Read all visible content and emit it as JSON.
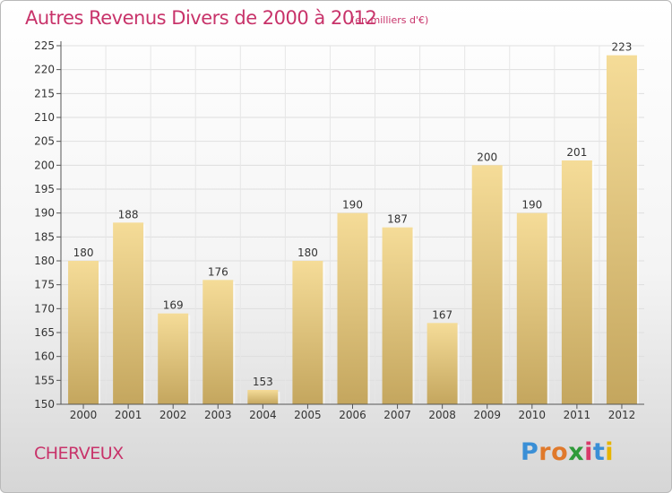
{
  "chart_data": {
    "type": "bar",
    "title": "Autres Revenus Divers de 2000 à 2012",
    "subtitle": "(en milliers d'€)",
    "categories": [
      "2000",
      "2001",
      "2002",
      "2003",
      "2004",
      "2005",
      "2006",
      "2007",
      "2008",
      "2009",
      "2010",
      "2011",
      "2012"
    ],
    "values": [
      180,
      188,
      169,
      176,
      153,
      180,
      190,
      187,
      167,
      200,
      190,
      201,
      223
    ],
    "ylim": [
      150,
      225
    ],
    "yticks": [
      150,
      155,
      160,
      165,
      170,
      175,
      180,
      185,
      190,
      195,
      200,
      205,
      210,
      215,
      220,
      225
    ],
    "grid": true,
    "bar_color_top": "#f5dc98",
    "bar_color_bottom": "#c4a65e"
  },
  "commune": "CHERVEUX",
  "logo": {
    "letters": [
      "P",
      "r",
      "o",
      "x",
      "i",
      "t",
      "i"
    ],
    "colors": [
      "#3a8fd6",
      "#e0792b",
      "#e0792b",
      "#2f9a3a",
      "#d93a6a",
      "#3a8fd6",
      "#e7b400"
    ]
  }
}
